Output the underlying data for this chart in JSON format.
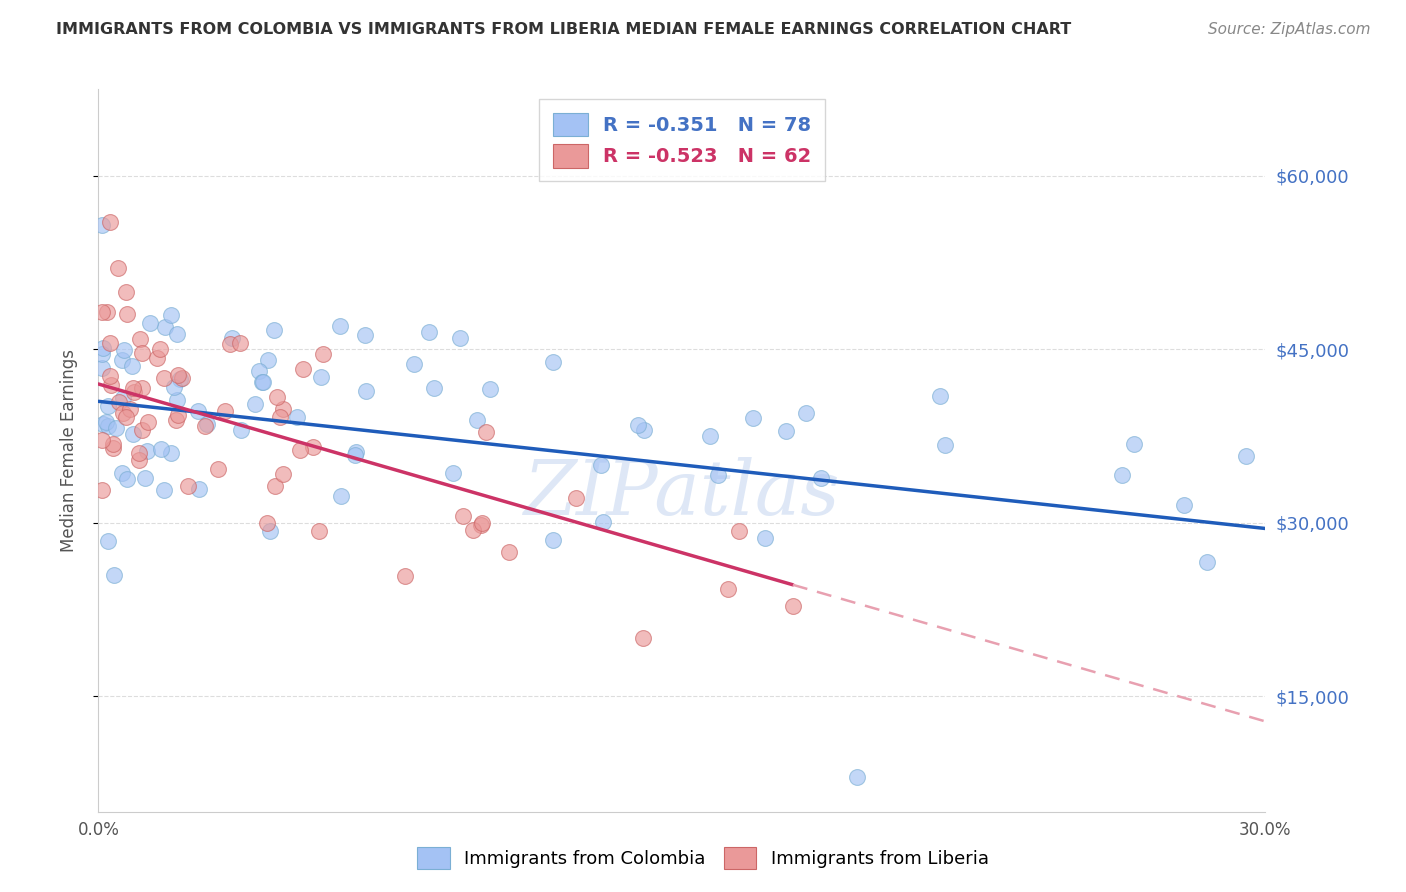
{
  "title": "IMMIGRANTS FROM COLOMBIA VS IMMIGRANTS FROM LIBERIA MEDIAN FEMALE EARNINGS CORRELATION CHART",
  "source": "Source: ZipAtlas.com",
  "ylabel": "Median Female Earnings",
  "xlim": [
    0.0,
    0.3
  ],
  "ylim": [
    5000,
    67500
  ],
  "yticks": [
    15000,
    30000,
    45000,
    60000
  ],
  "ytick_labels": [
    "$15,000",
    "$30,000",
    "$45,000",
    "$60,000"
  ],
  "xticks": [
    0.0,
    0.05,
    0.1,
    0.15,
    0.2,
    0.25,
    0.3
  ],
  "xtick_labels": [
    "0.0%",
    "",
    "",
    "",
    "",
    "",
    "30.0%"
  ],
  "colombia_color": "#a4c2f4",
  "liberia_color": "#ea9999",
  "colombia_edge": "#7bafd4",
  "liberia_edge": "#cc6666",
  "colombia_label": "Immigrants from Colombia",
  "liberia_label": "Immigrants from Liberia",
  "colombia_R": -0.351,
  "colombia_N": 78,
  "liberia_R": -0.523,
  "liberia_N": 62,
  "trend_blue_color": "#1f5cba",
  "trend_pink_solid_color": "#cc3366",
  "trend_pink_dashed_color": "#e8a0b0",
  "background_color": "#ffffff",
  "grid_color": "#dddddd",
  "watermark_color": "#c8d8f0",
  "title_color": "#333333",
  "source_color": "#888888",
  "ylabel_color": "#555555",
  "tick_label_color": "#555555",
  "right_ytick_color": "#4472c4"
}
